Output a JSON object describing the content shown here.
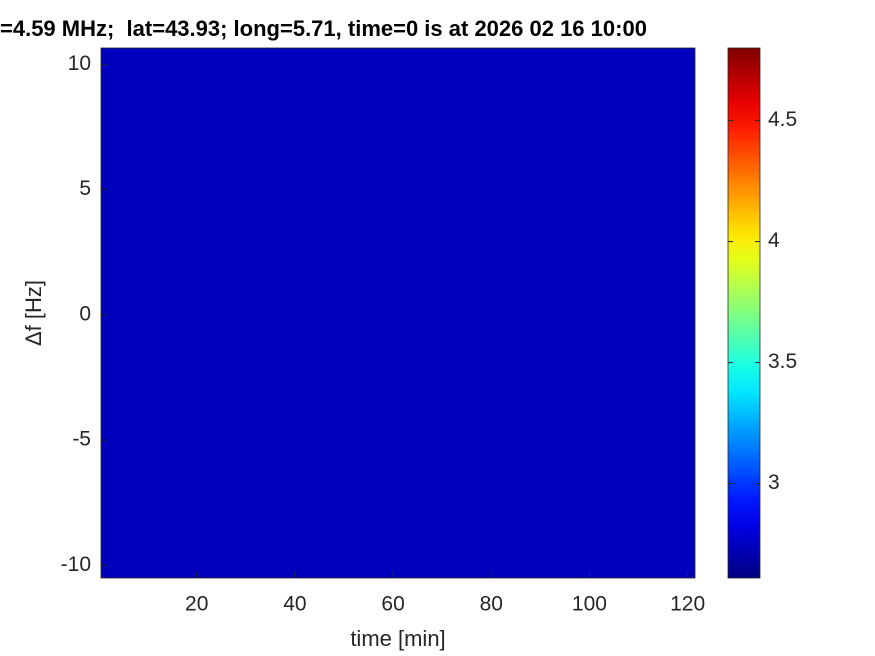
{
  "chart_data": {
    "type": "heatmap",
    "title": "=4.59 MHz;  lat=43.93; long=5.71, time=0 is at 2026 02 16 10:00",
    "x_label": "time [min]",
    "y_label": "Δf [Hz]",
    "xlim": [
      0.5,
      121.5
    ],
    "xticks": [
      20,
      40,
      60,
      80,
      100,
      120
    ],
    "ylim": [
      -10.5,
      10.65
    ],
    "yticks": [
      -10,
      -5,
      0,
      5,
      10
    ],
    "colormap": "jet",
    "clim": [
      2.61,
      4.8
    ],
    "cticks": [
      3,
      3.5,
      4,
      4.5
    ]
  }
}
